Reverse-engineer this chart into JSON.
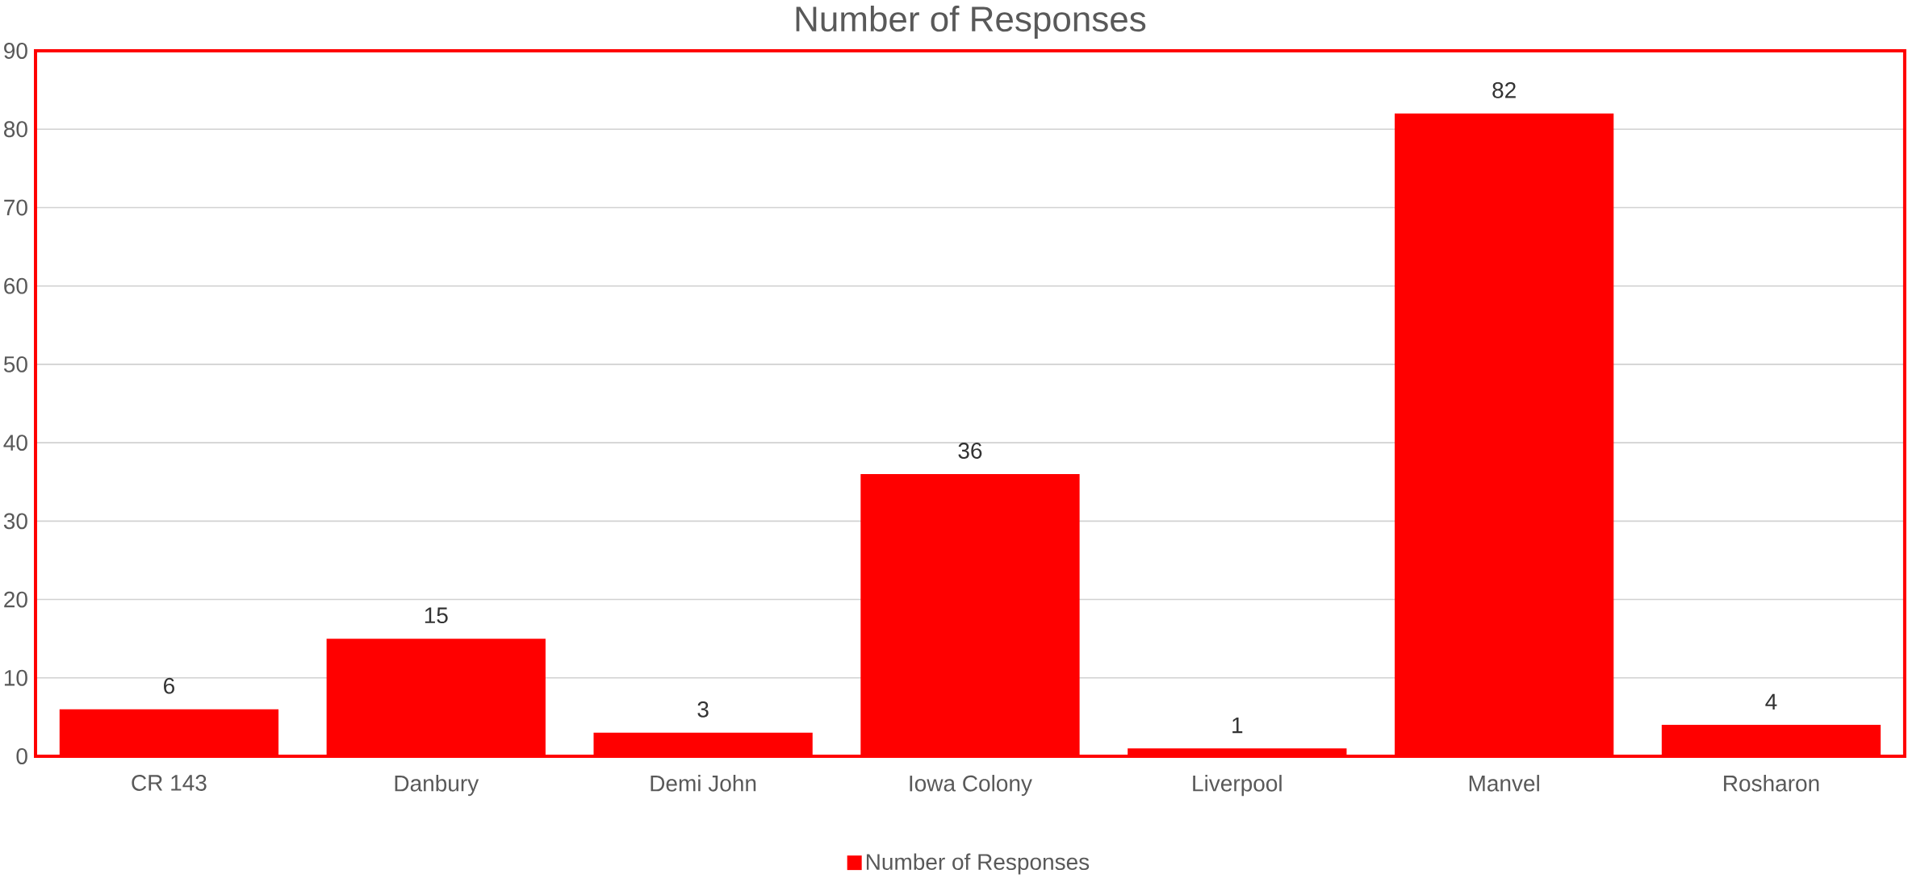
{
  "chart_data": {
    "type": "bar",
    "title": "Number of Responses",
    "categories": [
      "CR 143",
      "Danbury",
      "Demi John",
      "Iowa Colony",
      "Liverpool",
      "Manvel",
      "Rosharon"
    ],
    "series": [
      {
        "name": "Number of Responses",
        "color": "#ff0000",
        "values": [
          6,
          15,
          3,
          36,
          1,
          82,
          4
        ]
      }
    ],
    "ylim": [
      0,
      90
    ],
    "yticks": [
      0,
      10,
      20,
      30,
      40,
      50,
      60,
      70,
      80,
      90
    ],
    "grid": "y",
    "legend": "bottom",
    "data_labels": true
  }
}
